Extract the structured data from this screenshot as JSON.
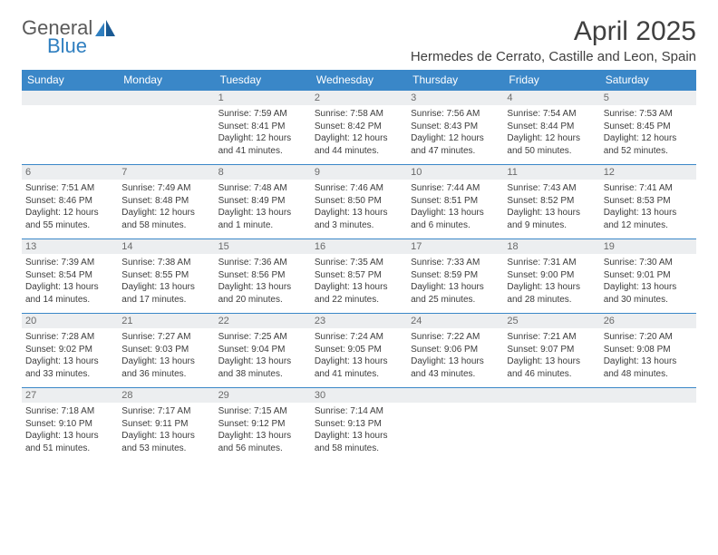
{
  "brand": {
    "general": "General",
    "blue": "Blue"
  },
  "title": "April 2025",
  "location": "Hermedes de Cerrato, Castille and Leon, Spain",
  "colors": {
    "header_bg": "#3a87c8",
    "header_text": "#ffffff",
    "daynum_bg": "#eceef0",
    "daynum_text": "#6a6a6a",
    "border": "#3a87c8",
    "body_text": "#3c3c3c",
    "brand_gray": "#5a5a5a",
    "brand_blue": "#2f7fc0"
  },
  "weekdays": [
    "Sunday",
    "Monday",
    "Tuesday",
    "Wednesday",
    "Thursday",
    "Friday",
    "Saturday"
  ],
  "weeks": [
    [
      null,
      null,
      {
        "n": "1",
        "sr": "7:59 AM",
        "ss": "8:41 PM",
        "dl": "12 hours and 41 minutes."
      },
      {
        "n": "2",
        "sr": "7:58 AM",
        "ss": "8:42 PM",
        "dl": "12 hours and 44 minutes."
      },
      {
        "n": "3",
        "sr": "7:56 AM",
        "ss": "8:43 PM",
        "dl": "12 hours and 47 minutes."
      },
      {
        "n": "4",
        "sr": "7:54 AM",
        "ss": "8:44 PM",
        "dl": "12 hours and 50 minutes."
      },
      {
        "n": "5",
        "sr": "7:53 AM",
        "ss": "8:45 PM",
        "dl": "12 hours and 52 minutes."
      }
    ],
    [
      {
        "n": "6",
        "sr": "7:51 AM",
        "ss": "8:46 PM",
        "dl": "12 hours and 55 minutes."
      },
      {
        "n": "7",
        "sr": "7:49 AM",
        "ss": "8:48 PM",
        "dl": "12 hours and 58 minutes."
      },
      {
        "n": "8",
        "sr": "7:48 AM",
        "ss": "8:49 PM",
        "dl": "13 hours and 1 minute."
      },
      {
        "n": "9",
        "sr": "7:46 AM",
        "ss": "8:50 PM",
        "dl": "13 hours and 3 minutes."
      },
      {
        "n": "10",
        "sr": "7:44 AM",
        "ss": "8:51 PM",
        "dl": "13 hours and 6 minutes."
      },
      {
        "n": "11",
        "sr": "7:43 AM",
        "ss": "8:52 PM",
        "dl": "13 hours and 9 minutes."
      },
      {
        "n": "12",
        "sr": "7:41 AM",
        "ss": "8:53 PM",
        "dl": "13 hours and 12 minutes."
      }
    ],
    [
      {
        "n": "13",
        "sr": "7:39 AM",
        "ss": "8:54 PM",
        "dl": "13 hours and 14 minutes."
      },
      {
        "n": "14",
        "sr": "7:38 AM",
        "ss": "8:55 PM",
        "dl": "13 hours and 17 minutes."
      },
      {
        "n": "15",
        "sr": "7:36 AM",
        "ss": "8:56 PM",
        "dl": "13 hours and 20 minutes."
      },
      {
        "n": "16",
        "sr": "7:35 AM",
        "ss": "8:57 PM",
        "dl": "13 hours and 22 minutes."
      },
      {
        "n": "17",
        "sr": "7:33 AM",
        "ss": "8:59 PM",
        "dl": "13 hours and 25 minutes."
      },
      {
        "n": "18",
        "sr": "7:31 AM",
        "ss": "9:00 PM",
        "dl": "13 hours and 28 minutes."
      },
      {
        "n": "19",
        "sr": "7:30 AM",
        "ss": "9:01 PM",
        "dl": "13 hours and 30 minutes."
      }
    ],
    [
      {
        "n": "20",
        "sr": "7:28 AM",
        "ss": "9:02 PM",
        "dl": "13 hours and 33 minutes."
      },
      {
        "n": "21",
        "sr": "7:27 AM",
        "ss": "9:03 PM",
        "dl": "13 hours and 36 minutes."
      },
      {
        "n": "22",
        "sr": "7:25 AM",
        "ss": "9:04 PM",
        "dl": "13 hours and 38 minutes."
      },
      {
        "n": "23",
        "sr": "7:24 AM",
        "ss": "9:05 PM",
        "dl": "13 hours and 41 minutes."
      },
      {
        "n": "24",
        "sr": "7:22 AM",
        "ss": "9:06 PM",
        "dl": "13 hours and 43 minutes."
      },
      {
        "n": "25",
        "sr": "7:21 AM",
        "ss": "9:07 PM",
        "dl": "13 hours and 46 minutes."
      },
      {
        "n": "26",
        "sr": "7:20 AM",
        "ss": "9:08 PM",
        "dl": "13 hours and 48 minutes."
      }
    ],
    [
      {
        "n": "27",
        "sr": "7:18 AM",
        "ss": "9:10 PM",
        "dl": "13 hours and 51 minutes."
      },
      {
        "n": "28",
        "sr": "7:17 AM",
        "ss": "9:11 PM",
        "dl": "13 hours and 53 minutes."
      },
      {
        "n": "29",
        "sr": "7:15 AM",
        "ss": "9:12 PM",
        "dl": "13 hours and 56 minutes."
      },
      {
        "n": "30",
        "sr": "7:14 AM",
        "ss": "9:13 PM",
        "dl": "13 hours and 58 minutes."
      },
      null,
      null,
      null
    ]
  ],
  "labels": {
    "sunrise": "Sunrise:",
    "sunset": "Sunset:",
    "daylight": "Daylight:"
  }
}
